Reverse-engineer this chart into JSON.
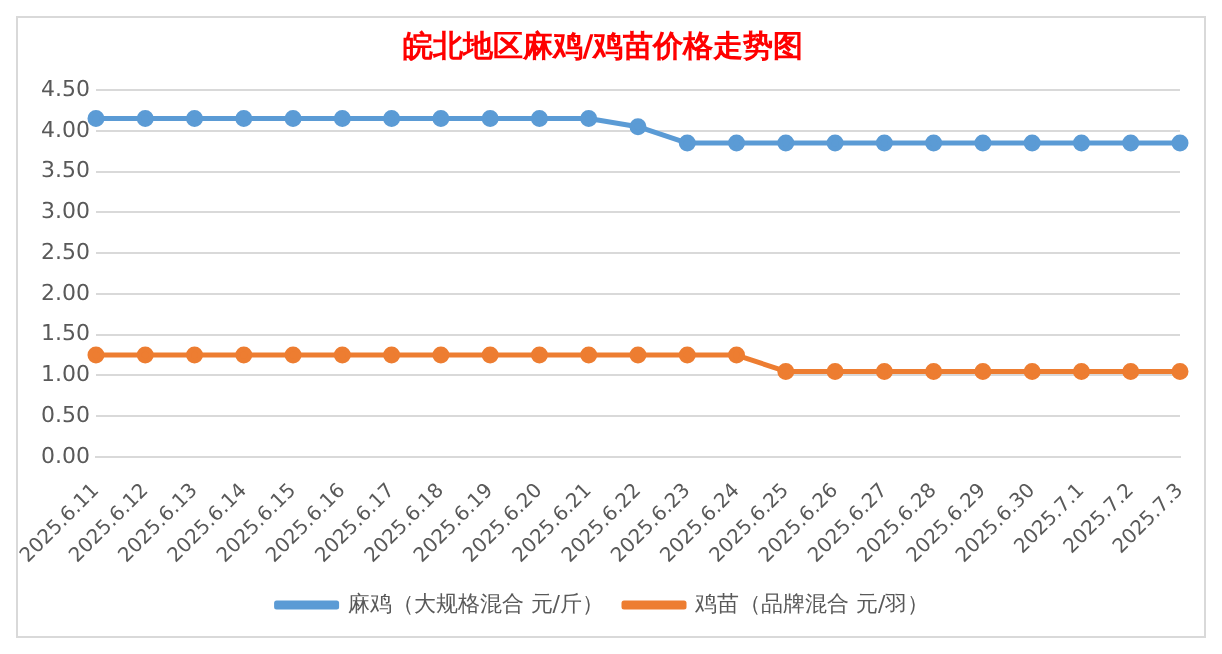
{
  "chart_data": {
    "type": "line",
    "title": "皖北地区麻鸡/鸡苗价格走势图",
    "categories": [
      "2025.6.11",
      "2025.6.12",
      "2025.6.13",
      "2025.6.14",
      "2025.6.15",
      "2025.6.16",
      "2025.6.17",
      "2025.6.18",
      "2025.6.19",
      "2025.6.20",
      "2025.6.21",
      "2025.6.22",
      "2025.6.23",
      "2025.6.24",
      "2025.6.25",
      "2025.6.26",
      "2025.6.27",
      "2025.6.28",
      "2025.6.29",
      "2025.6.30",
      "2025.7.1",
      "2025.7.2",
      "2025.7.3"
    ],
    "series": [
      {
        "name": "麻鸡（大规格混合 元/斤）",
        "color": "#5b9bd5",
        "values": [
          4.15,
          4.15,
          4.15,
          4.15,
          4.15,
          4.15,
          4.15,
          4.15,
          4.15,
          4.15,
          4.15,
          4.05,
          3.85,
          3.85,
          3.85,
          3.85,
          3.85,
          3.85,
          3.85,
          3.85,
          3.85,
          3.85,
          3.85
        ]
      },
      {
        "name": "鸡苗（品牌混合 元/羽）",
        "color": "#ed7d31",
        "values": [
          1.25,
          1.25,
          1.25,
          1.25,
          1.25,
          1.25,
          1.25,
          1.25,
          1.25,
          1.25,
          1.25,
          1.25,
          1.25,
          1.25,
          1.05,
          1.05,
          1.05,
          1.05,
          1.05,
          1.05,
          1.05,
          1.05,
          1.05
        ]
      }
    ],
    "ylim": [
      0,
      4.5
    ],
    "yticks": [
      {
        "value": 0,
        "label": "0.00"
      },
      {
        "value": 0.5,
        "label": "0.50"
      },
      {
        "value": 1,
        "label": "1.00"
      },
      {
        "value": 1.5,
        "label": "1.50"
      },
      {
        "value": 2,
        "label": "2.00"
      },
      {
        "value": 2.5,
        "label": "2.50"
      },
      {
        "value": 3,
        "label": "3.00"
      },
      {
        "value": 3.5,
        "label": "3.50"
      },
      {
        "value": 4,
        "label": "4.00"
      },
      {
        "value": 4.5,
        "label": "4.50"
      }
    ],
    "grid": "y",
    "legend": "bottom",
    "marker": "circle",
    "line_style": "solid"
  }
}
